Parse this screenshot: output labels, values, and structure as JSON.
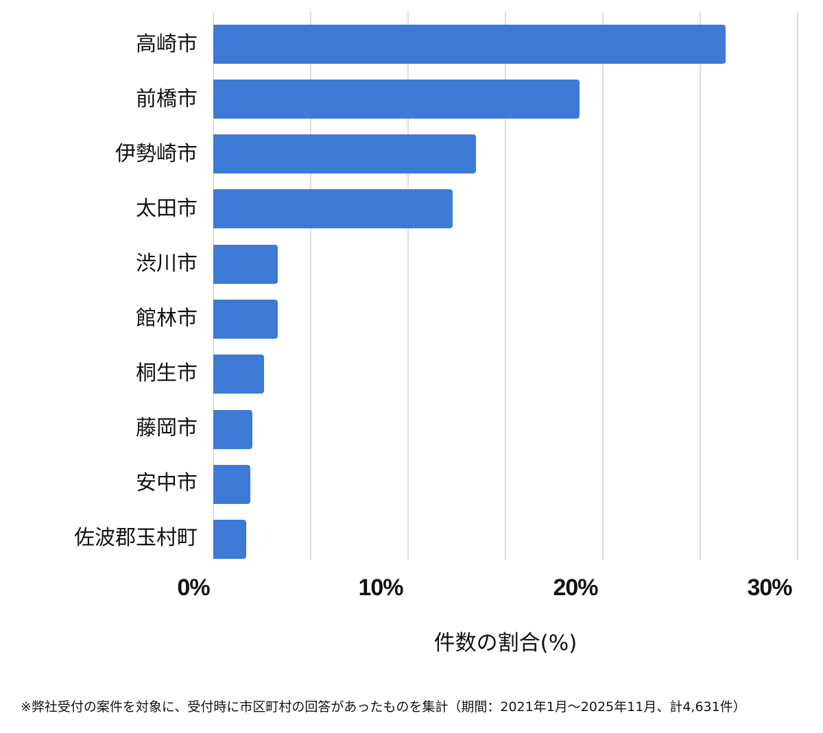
{
  "chart_data": {
    "type": "bar",
    "orientation": "horizontal",
    "title": "",
    "categories": [
      "高崎市",
      "前橋市",
      "伊勢崎市",
      "太田市",
      "渋川市",
      "館林市",
      "桐生市",
      "藤岡市",
      "安中市",
      "佐波郡玉村町"
    ],
    "values": [
      26.3,
      18.8,
      13.5,
      12.3,
      3.3,
      3.3,
      2.6,
      2.0,
      1.9,
      1.7
    ],
    "xlabel": "件数の割合(%)",
    "ylabel": "",
    "xlim": [
      0,
      30
    ],
    "x_ticks": [
      "0%",
      "10%",
      "20%",
      "30%"
    ],
    "grid": true,
    "grid_step": 5,
    "bar_color": "#3c7ad6",
    "legend": null
  },
  "axis": {
    "ticks": [
      "0%",
      "10%",
      "20%",
      "30%"
    ],
    "xlabel": "件数の割合(%)"
  },
  "categories": [
    "高崎市",
    "前橋市",
    "伊勢崎市",
    "太田市",
    "渋川市",
    "館林市",
    "桐生市",
    "藤岡市",
    "安中市",
    "佐波郡玉村町"
  ],
  "footnote": "※弊社受付の案件を対象に、受付時に市区町村の回答があったものを集計（期間：2021年1月～2025年11月、計4,631件）"
}
